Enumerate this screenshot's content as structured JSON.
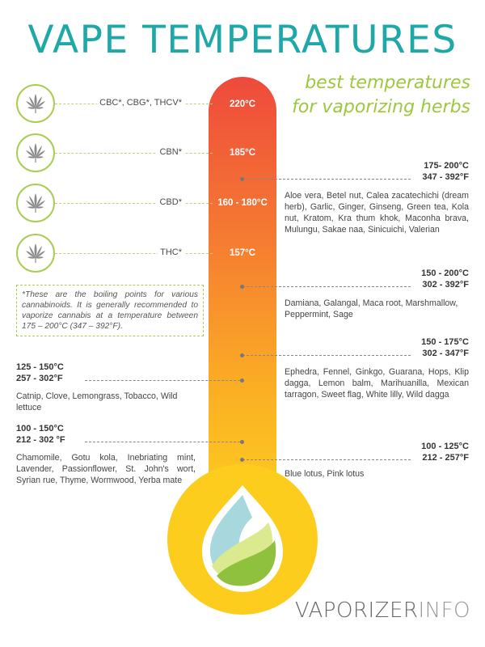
{
  "title": "VAPE TEMPERATURES",
  "subtitle": [
    "best temperatures",
    "for vaporizing herbs"
  ],
  "cannabinoids": [
    {
      "label": "CBC*, CBG*, THCV*",
      "temp": "220°C"
    },
    {
      "label": "CBN*",
      "temp": "185°C"
    },
    {
      "label": "CBD*",
      "temp": "160 - 180°C"
    },
    {
      "label": "THC*",
      "temp": "157°C"
    }
  ],
  "note": "*These are the boiling points for various cannabinoids. It is generally recommended to vaporize cannabis at a temperature between 175 – 200°C (347 – 392°F).",
  "right_groups": [
    {
      "celsius": "175- 200°C",
      "fahrenheit": "347 - 392°F",
      "herbs": "Aloe vera, Betel nut, Calea zacatechichi (dream herb), Garlic, Ginger, Ginseng, Green tea, Kola nut, Kratom, Kra thum khok, Maconha brava, Mulungu, Sakae naa, Sinicuichi, Valerian"
    },
    {
      "celsius": "150 - 200°C",
      "fahrenheit": "302 - 392°F",
      "herbs": "Damiana, Galangal, Maca root, Marshmallow, Peppermint, Sage"
    },
    {
      "celsius": "150 - 175°C",
      "fahrenheit": "302 - 347°F",
      "herbs": "Ephedra, Fennel, Ginkgo, Guarana, Hops, Klip dagga, Lemon balm, Marihuanilla, Mexican tarragon, Sweet flag, White lilly, Wild dagga"
    },
    {
      "celsius": "100 - 125°C",
      "fahrenheit": "212 - 257°F",
      "herbs": "Blue lotus, Pink lotus"
    }
  ],
  "left_groups": [
    {
      "celsius": "125 - 150°C",
      "fahrenheit": "257 - 302°F",
      "herbs": "Catnip, Clove, Lemongrass, Tobacco, Wild lettuce"
    },
    {
      "celsius": "100 - 150°C",
      "fahrenheit": "212 - 302 °F",
      "herbs": "Chamomile, Gotu kola, Inebriating mint, Lavender, Passionflower, St. John's wort, Syrian rue, Thyme, Wormwood, Yerba mate"
    }
  ],
  "brand": {
    "part1": "VAPORIZER",
    "part2": "INFO"
  },
  "colors": {
    "title": "#1fa8a8",
    "accent_green": "#9cc83c",
    "therm_top": "#ee4a3c",
    "therm_bottom": "#fdd31e"
  },
  "icons": {
    "cannabinoid": "cannabis-leaf-icon",
    "bulb": "water-drop-leaf-icon"
  }
}
